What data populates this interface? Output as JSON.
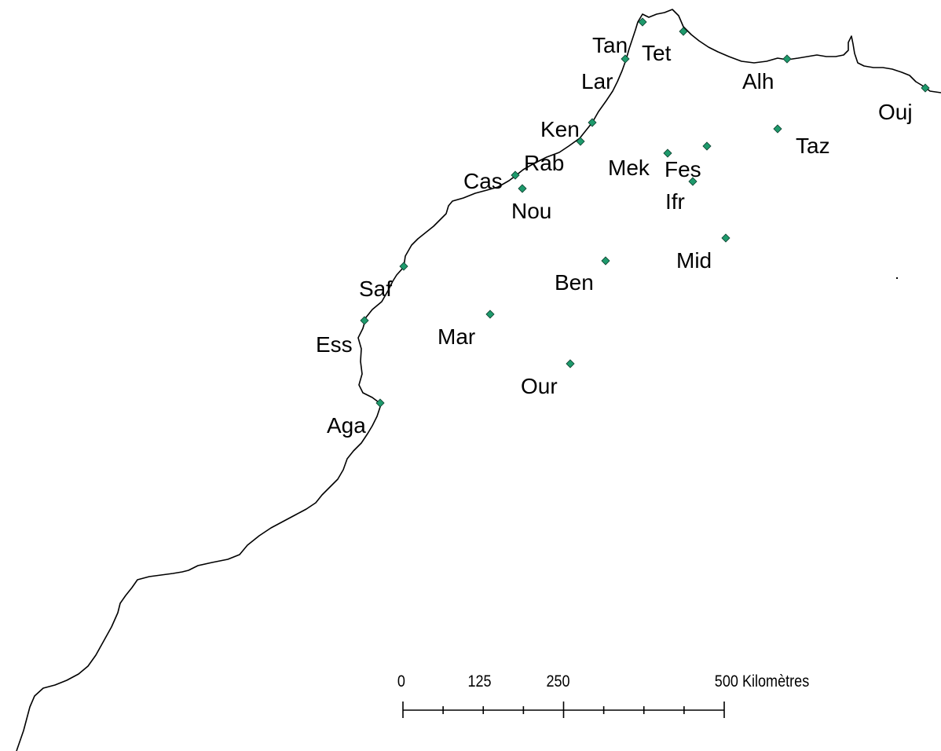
{
  "map": {
    "marker_color": "#1e9a6c",
    "cities": [
      {
        "id": "tanger",
        "label": "Tan"
      },
      {
        "id": "tetouan",
        "label": "Tet"
      },
      {
        "id": "larache",
        "label": "Lar"
      },
      {
        "id": "alhoceima",
        "label": "Alh"
      },
      {
        "id": "oujda",
        "label": "Ouj"
      },
      {
        "id": "kenitra",
        "label": "Ken"
      },
      {
        "id": "rabat",
        "label": "Rab"
      },
      {
        "id": "casablanca",
        "label": "Cas"
      },
      {
        "id": "nouaceur",
        "label": "Nou"
      },
      {
        "id": "meknes",
        "label": "Mek"
      },
      {
        "id": "fes",
        "label": "Fes"
      },
      {
        "id": "ifrane",
        "label": "Ifr"
      },
      {
        "id": "taza",
        "label": "Taz"
      },
      {
        "id": "midelt",
        "label": "Mid"
      },
      {
        "id": "benimellal",
        "label": "Ben"
      },
      {
        "id": "safi",
        "label": "Saf"
      },
      {
        "id": "essaouira",
        "label": "Ess"
      },
      {
        "id": "marrakech",
        "label": "Mar"
      },
      {
        "id": "ouarzazate",
        "label": "Our"
      },
      {
        "id": "agadir",
        "label": "Aga"
      }
    ],
    "scale_bar": {
      "ticks": [
        "0",
        "125",
        "250",
        "500 Kilomètres"
      ]
    }
  }
}
